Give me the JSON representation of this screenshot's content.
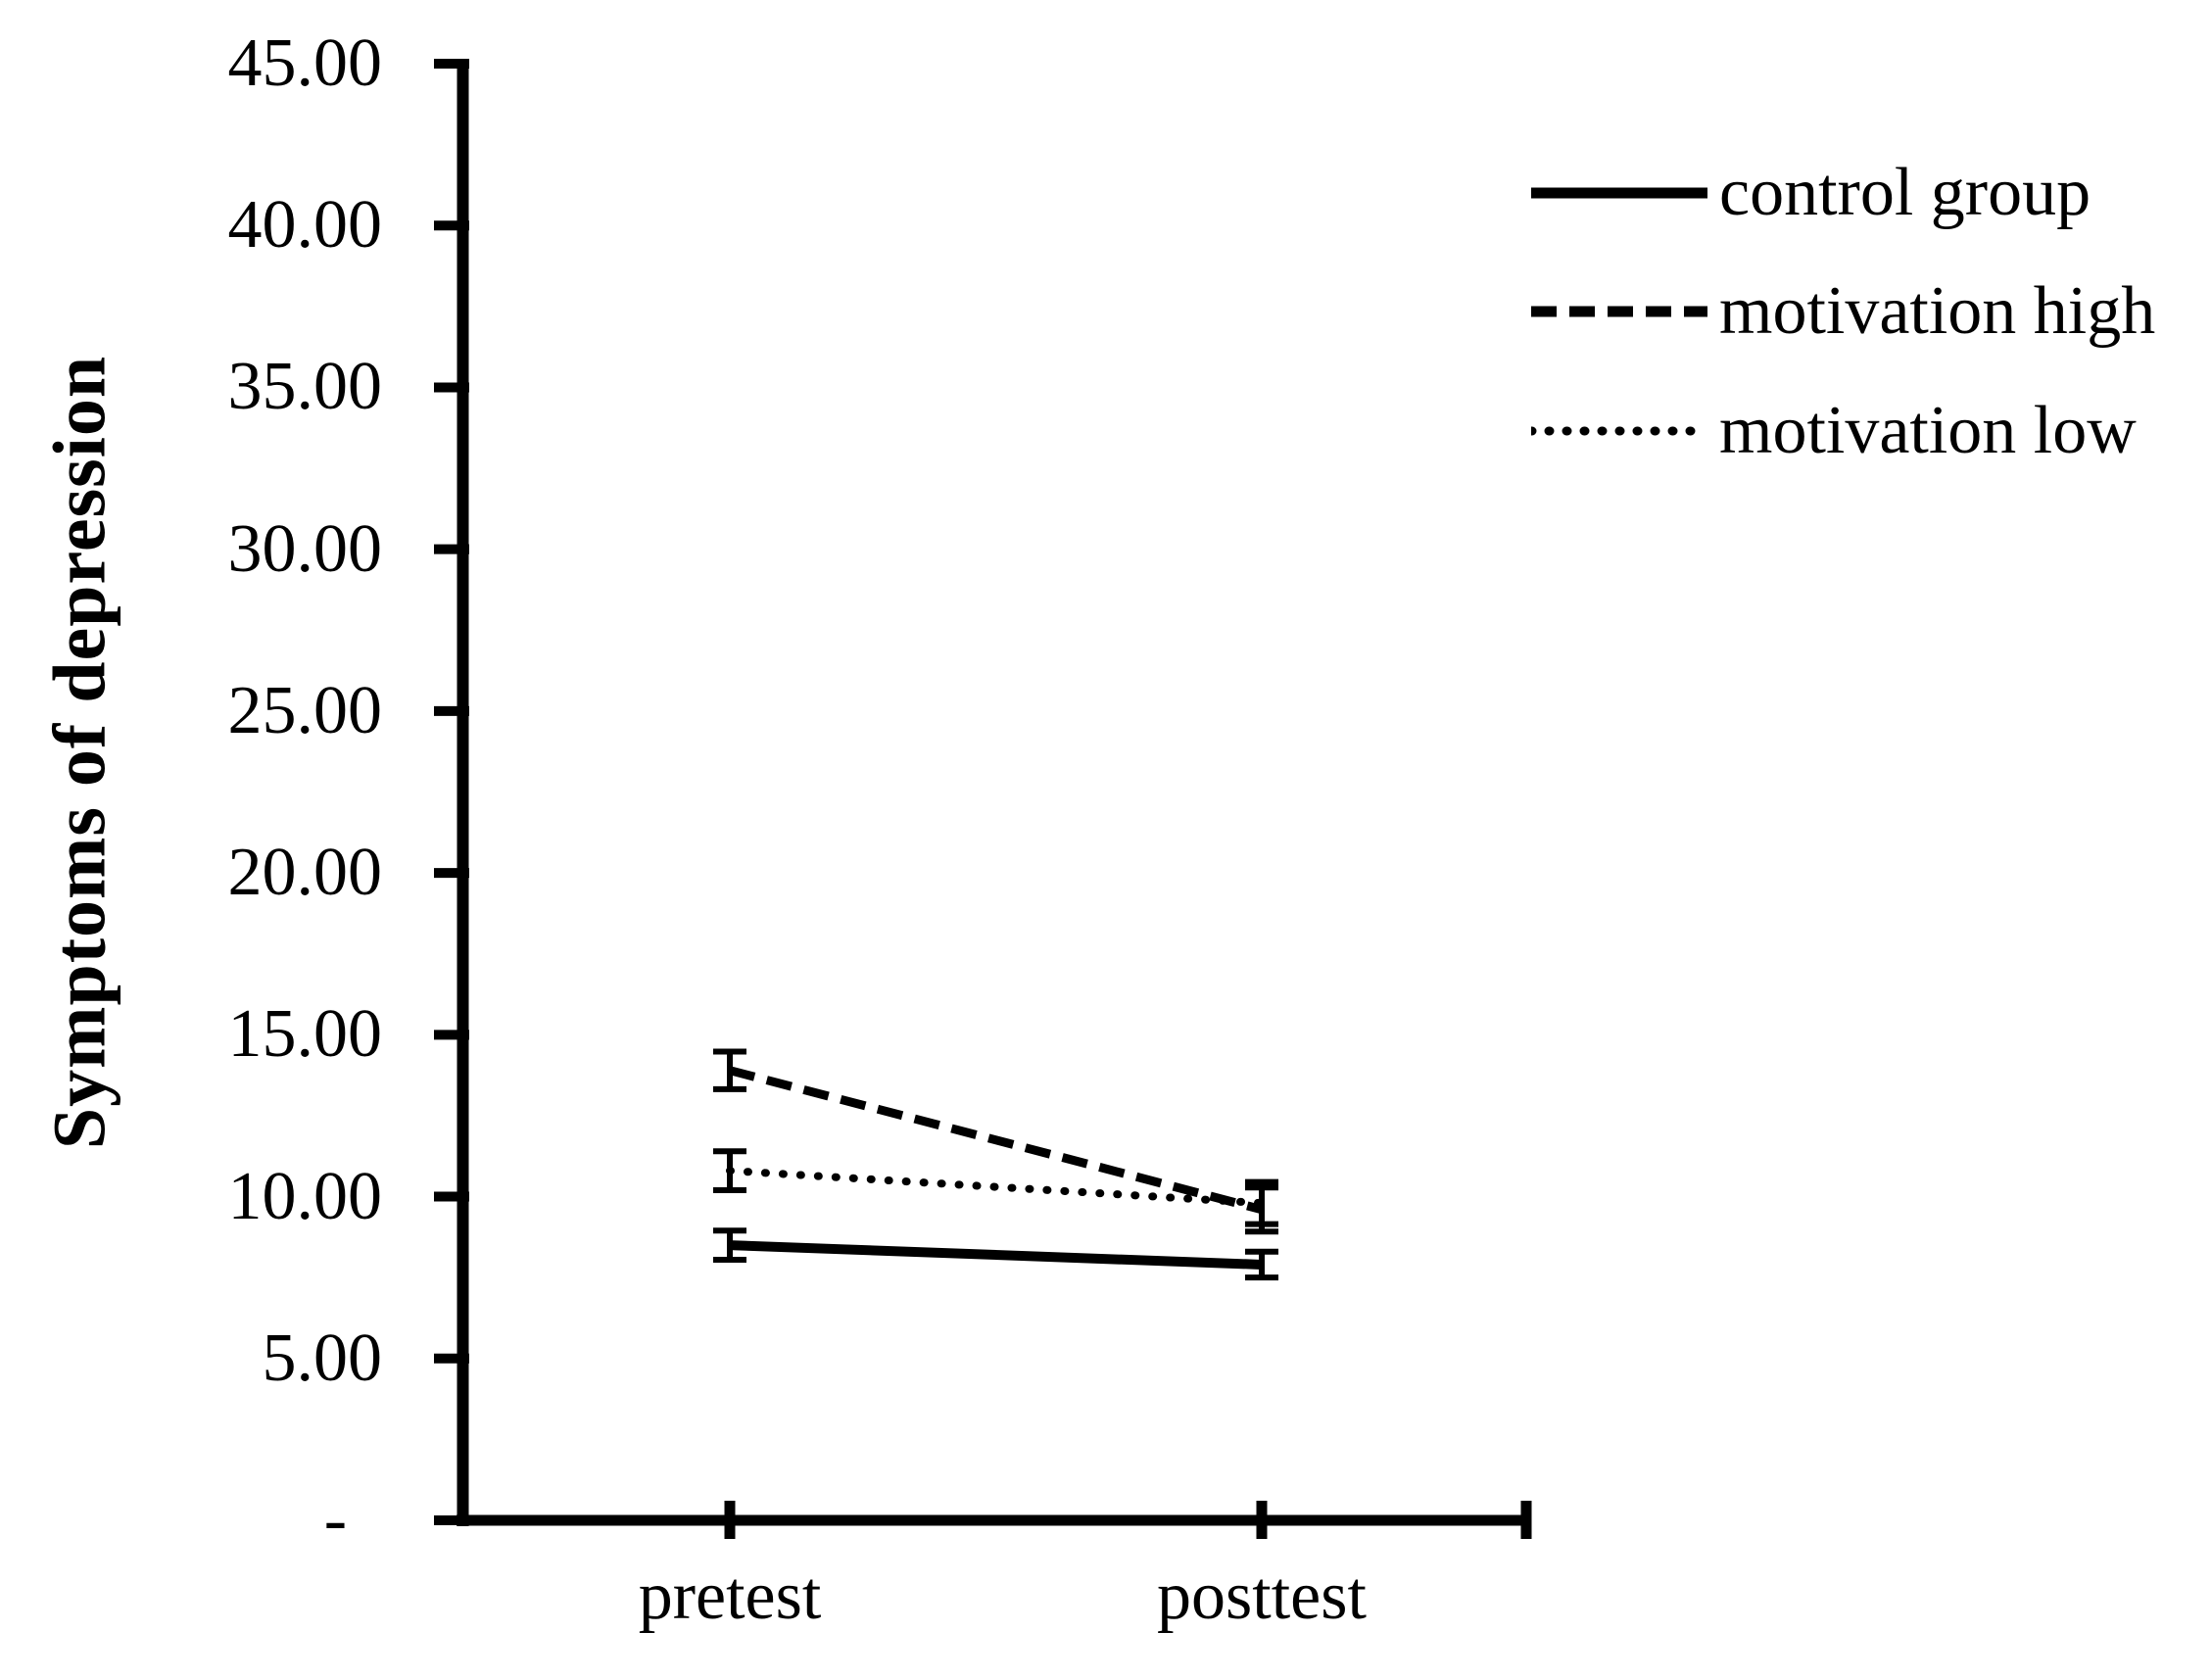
{
  "figure": {
    "background": "#ffffff",
    "ink": "#000000"
  },
  "chart_data": {
    "type": "line",
    "title": "",
    "ylabel": "Symptoms of depression",
    "xlabel": "",
    "categories": [
      "pretest",
      "posttest"
    ],
    "ylim": [
      0,
      45
    ],
    "y_tick_interval": 5,
    "grid": false,
    "legend_position": "top-right",
    "y_ticks": [
      {
        "value": 45,
        "label": "45.00"
      },
      {
        "value": 40,
        "label": "40.00"
      },
      {
        "value": 35,
        "label": "35.00"
      },
      {
        "value": 30,
        "label": "30.00"
      },
      {
        "value": 25,
        "label": "25.00"
      },
      {
        "value": 20,
        "label": "20.00"
      },
      {
        "value": 15,
        "label": "15.00"
      },
      {
        "value": 10,
        "label": "10.00"
      },
      {
        "value": 5,
        "label": "5.00"
      },
      {
        "value": 0,
        "label": "-"
      }
    ],
    "series": [
      {
        "name": "control group",
        "line_style": "solid",
        "values": [
          8.5,
          7.9
        ],
        "error_bars": [
          0.45,
          0.4
        ]
      },
      {
        "name": "motivation high",
        "line_style": "dashed",
        "values": [
          13.9,
          9.6
        ],
        "error_bars": [
          0.58,
          0.68
        ]
      },
      {
        "name": "motivation low",
        "line_style": "dotted",
        "values": [
          10.8,
          9.8
        ],
        "error_bars": [
          0.6,
          0.65
        ]
      }
    ]
  }
}
